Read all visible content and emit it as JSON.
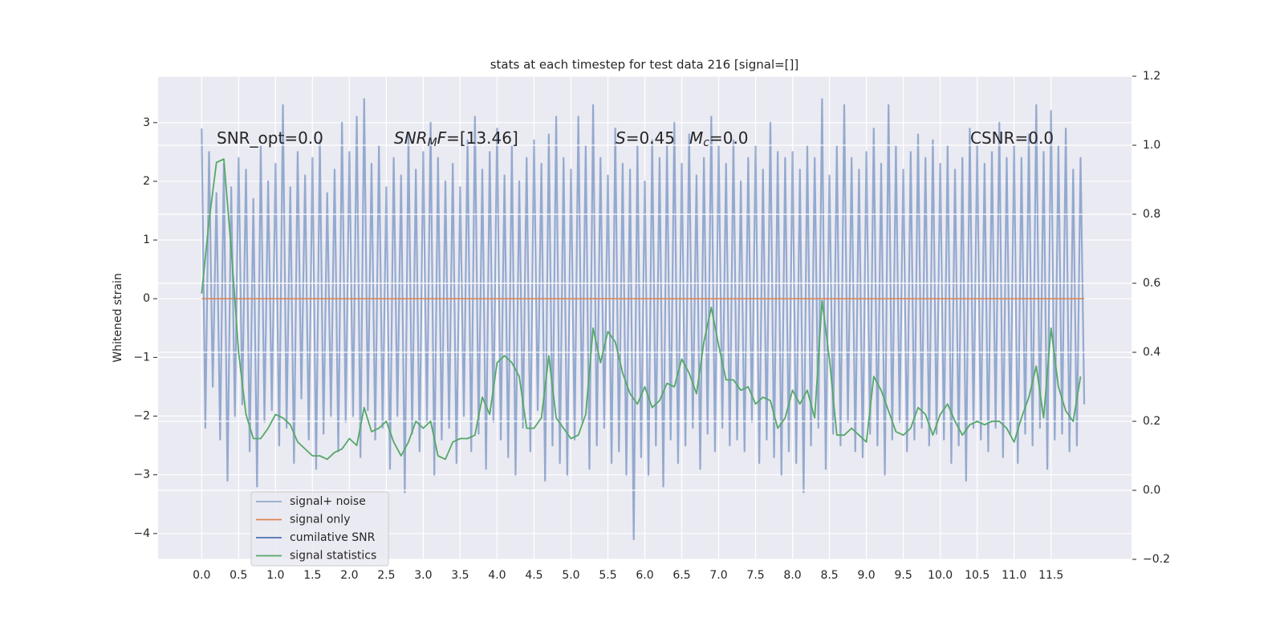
{
  "chart_data": {
    "type": "line",
    "title": "stats at each timestep for test data 216 [signal=[]]",
    "y_label": "Whitened strain",
    "xlim": [
      -0.59,
      12.59
    ],
    "ylim": [
      -4.44,
      3.79
    ],
    "y2lim": [
      -0.2,
      1.2
    ],
    "xticks": [
      {
        "value": 0,
        "label": "0.0"
      },
      0.5,
      {
        "value": 1,
        "label": "1.0"
      },
      1.5,
      {
        "value": 2,
        "label": "2.0"
      },
      2.5,
      {
        "value": 3,
        "label": "3.0"
      },
      3.5,
      {
        "value": 4,
        "label": "4.0"
      },
      4.5,
      {
        "value": 5,
        "label": "5.0"
      },
      5.5,
      {
        "value": 6,
        "label": "6.0"
      },
      6.5,
      {
        "value": 7,
        "label": "7.0"
      },
      7.5,
      {
        "value": 8,
        "label": "8.0"
      },
      8.5,
      {
        "value": 9,
        "label": "9.0"
      },
      9.5,
      {
        "value": 10,
        "label": "10.0"
      },
      10.5,
      {
        "value": 11,
        "label": "11.0"
      },
      11.5
    ],
    "yticks": [
      3,
      2,
      1,
      0,
      {
        "value": -1,
        "label": "−1"
      },
      {
        "value": -2,
        "label": "−2"
      },
      {
        "value": -3,
        "label": "−3"
      },
      {
        "value": -4,
        "label": "−4"
      }
    ],
    "y2ticks": [
      1.2,
      {
        "value": 1,
        "label": "1.0"
      },
      0.8,
      0.6,
      0.4,
      0.2,
      {
        "value": 0,
        "label": "0.0"
      },
      {
        "value": -0.2,
        "label": "−0.2"
      }
    ],
    "grid": true,
    "legend": "lower left",
    "annotations": [
      {
        "parts": [
          {
            "text": "SNR_opt=0.0"
          }
        ]
      },
      {
        "parts": [
          {
            "text": "SNR",
            "italic": true
          },
          {
            "text": "M",
            "italic": true,
            "sub": true
          },
          {
            "text": "F",
            "italic": true
          },
          {
            "text": "=[13.46]"
          }
        ]
      },
      {
        "parts": [
          {
            "text": "S",
            "italic": true
          },
          {
            "text": "=0.45"
          }
        ]
      },
      {
        "parts": [
          {
            "text": "M",
            "italic": true
          },
          {
            "text": "c",
            "italic": true,
            "sub": true
          },
          {
            "text": "=0.0"
          }
        ]
      },
      {
        "parts": [
          {
            "text": "CSNR=0.0"
          }
        ]
      }
    ],
    "series": [
      {
        "name": "signal+ noise",
        "color": "#4c72b0",
        "opacity": 0.55,
        "x": [
          0,
          0.05,
          0.1,
          0.15,
          0.2,
          0.25,
          0.3,
          0.35,
          0.4,
          0.45,
          0.5,
          0.55,
          0.6,
          0.65,
          0.7,
          0.75,
          0.8,
          0.85,
          0.9,
          0.95,
          1,
          1.05,
          1.1,
          1.15,
          1.2,
          1.25,
          1.3,
          1.35,
          1.4,
          1.45,
          1.5,
          1.55,
          1.6,
          1.65,
          1.7,
          1.75,
          1.8,
          1.85,
          1.9,
          1.95,
          2,
          2.05,
          2.1,
          2.15,
          2.2,
          2.25,
          2.3,
          2.35,
          2.4,
          2.45,
          2.5,
          2.55,
          2.6,
          2.65,
          2.7,
          2.75,
          2.8,
          2.85,
          2.9,
          2.95,
          3,
          3.05,
          3.1,
          3.15,
          3.2,
          3.25,
          3.3,
          3.35,
          3.4,
          3.45,
          3.5,
          3.55,
          3.6,
          3.65,
          3.7,
          3.75,
          3.8,
          3.85,
          3.9,
          3.95,
          4,
          4.05,
          4.1,
          4.15,
          4.2,
          4.25,
          4.3,
          4.35,
          4.4,
          4.45,
          4.5,
          4.55,
          4.6,
          4.65,
          4.7,
          4.75,
          4.8,
          4.85,
          4.9,
          4.95,
          5,
          5.05,
          5.1,
          5.15,
          5.2,
          5.25,
          5.3,
          5.35,
          5.4,
          5.45,
          5.5,
          5.55,
          5.6,
          5.65,
          5.7,
          5.75,
          5.8,
          5.85,
          5.9,
          5.95,
          6,
          6.05,
          6.1,
          6.15,
          6.2,
          6.25,
          6.3,
          6.35,
          6.4,
          6.45,
          6.5,
          6.55,
          6.6,
          6.65,
          6.7,
          6.75,
          6.8,
          6.85,
          6.9,
          6.95,
          7,
          7.05,
          7.1,
          7.15,
          7.2,
          7.25,
          7.3,
          7.35,
          7.4,
          7.45,
          7.5,
          7.55,
          7.6,
          7.65,
          7.7,
          7.75,
          7.8,
          7.85,
          7.9,
          7.95,
          8,
          8.05,
          8.1,
          8.15,
          8.2,
          8.25,
          8.3,
          8.35,
          8.4,
          8.45,
          8.5,
          8.55,
          8.6,
          8.65,
          8.7,
          8.75,
          8.8,
          8.85,
          8.9,
          8.95,
          9,
          9.05,
          9.1,
          9.15,
          9.2,
          9.25,
          9.3,
          9.35,
          9.4,
          9.45,
          9.5,
          9.55,
          9.6,
          9.65,
          9.7,
          9.75,
          9.8,
          9.85,
          9.9,
          9.95,
          10,
          10.05,
          10.1,
          10.15,
          10.2,
          10.25,
          10.3,
          10.35,
          10.4,
          10.45,
          10.5,
          10.55,
          10.6,
          10.65,
          10.7,
          10.75,
          10.8,
          10.85,
          10.9,
          10.95,
          11,
          11.05,
          11.1,
          11.15,
          11.2,
          11.25,
          11.3,
          11.35,
          11.4,
          11.45,
          11.5,
          11.55,
          11.6,
          11.65,
          11.7,
          11.75,
          11.8,
          11.85,
          11.9,
          11.95
        ],
        "values": [
          2.9,
          -2.2,
          2.5,
          -1.5,
          1.8,
          -2.4,
          2.3,
          -3.1,
          1.9,
          -2.0,
          2.4,
          -1.8,
          2.2,
          -2.6,
          1.7,
          -3.2,
          2.6,
          -2.1,
          2.0,
          -1.9,
          2.3,
          -2.5,
          3.3,
          -2.2,
          1.9,
          -2.8,
          2.5,
          -1.7,
          2.1,
          -2.4,
          2.4,
          -2.9,
          2.7,
          -2.3,
          1.8,
          -2.0,
          2.2,
          -2.6,
          3.0,
          -2.1,
          2.5,
          -2.0,
          3.1,
          -2.7,
          3.4,
          -1.9,
          2.3,
          -2.4,
          2.6,
          -2.2,
          1.9,
          -2.9,
          2.4,
          -2.0,
          2.1,
          -3.3,
          2.8,
          -2.3,
          2.2,
          -2.6,
          2.5,
          -2.1,
          3.0,
          -3.0,
          2.4,
          -2.4,
          2.0,
          -2.2,
          2.3,
          -2.8,
          1.9,
          -2.0,
          2.7,
          -2.6,
          3.1,
          -2.3,
          2.2,
          -2.9,
          2.5,
          -2.1,
          2.9,
          -2.4,
          2.1,
          -2.7,
          2.6,
          -3.0,
          2.0,
          -2.2,
          2.4,
          -2.6,
          2.7,
          -1.9,
          2.3,
          -3.1,
          2.8,
          -2.5,
          3.1,
          -2.8,
          2.4,
          -3.0,
          2.2,
          -2.4,
          3.1,
          -2.1,
          2.6,
          -2.9,
          3.3,
          -2.5,
          2.4,
          -2.2,
          2.1,
          -2.8,
          2.9,
          -2.6,
          2.3,
          -3.0,
          2.2,
          -4.1,
          2.6,
          -2.7,
          2.0,
          -3.0,
          2.7,
          -2.5,
          2.4,
          -3.2,
          2.6,
          -2.4,
          3.0,
          -2.8,
          2.3,
          -2.5,
          2.8,
          -2.2,
          2.1,
          -2.9,
          2.4,
          -2.3,
          3.1,
          -2.6,
          2.6,
          -2.2,
          2.3,
          -2.5,
          2.7,
          -2.4,
          2.0,
          -2.6,
          2.4,
          -2.1,
          2.6,
          -2.8,
          2.2,
          -2.4,
          3.0,
          -2.7,
          2.5,
          -3.0,
          2.4,
          -2.6,
          2.5,
          -2.8,
          2.2,
          -3.3,
          2.6,
          -2.5,
          2.4,
          -2.2,
          3.4,
          -2.9,
          2.1,
          -2.3,
          2.6,
          -2.5,
          3.3,
          -2.1,
          2.4,
          -2.6,
          2.2,
          -2.7,
          2.5,
          -2.3,
          2.9,
          -2.5,
          2.3,
          -3.0,
          3.3,
          -2.4,
          2.6,
          -2.1,
          2.2,
          -2.6,
          2.5,
          -2.4,
          2.8,
          -2.2,
          2.4,
          -2.5,
          2.7,
          -2.3,
          2.3,
          -2.4,
          2.6,
          -2.8,
          2.2,
          -2.5,
          2.4,
          -3.1,
          2.9,
          -2.2,
          2.6,
          -2.4,
          2.3,
          -2.6,
          2.5,
          -2.2,
          3.0,
          -2.7,
          2.4,
          -2.3,
          2.6,
          -2.8,
          2.4,
          -2.3,
          2.8,
          -2.5,
          3.3,
          -2.2,
          2.5,
          -2.9,
          3.2,
          -2.4,
          2.6,
          -2.3,
          2.9,
          -2.6,
          2.2,
          -2.5,
          2.4,
          -1.8
        ]
      },
      {
        "name": "signal only",
        "color": "#dd8452",
        "x": [
          0,
          11.95
        ],
        "values": [
          0,
          0
        ]
      },
      {
        "name": "cumilative SNR",
        "color": "#4c72b0"
      },
      {
        "name": "signal statistics",
        "color": "#55a868",
        "axis": "y2",
        "x": [
          0,
          0.1,
          0.2,
          0.3,
          0.4,
          0.5,
          0.6,
          0.7,
          0.8,
          0.9,
          1,
          1.1,
          1.2,
          1.3,
          1.4,
          1.5,
          1.6,
          1.7,
          1.8,
          1.9,
          2,
          2.1,
          2.2,
          2.3,
          2.4,
          2.5,
          2.6,
          2.7,
          2.8,
          2.9,
          3,
          3.1,
          3.2,
          3.3,
          3.4,
          3.5,
          3.6,
          3.7,
          3.8,
          3.9,
          4,
          4.1,
          4.2,
          4.3,
          4.4,
          4.5,
          4.6,
          4.7,
          4.8,
          4.9,
          5,
          5.1,
          5.2,
          5.3,
          5.4,
          5.5,
          5.6,
          5.7,
          5.8,
          5.9,
          6,
          6.1,
          6.2,
          6.3,
          6.4,
          6.5,
          6.6,
          6.7,
          6.8,
          6.9,
          7,
          7.1,
          7.2,
          7.3,
          7.4,
          7.5,
          7.6,
          7.7,
          7.8,
          7.9,
          8,
          8.1,
          8.2,
          8.3,
          8.4,
          8.5,
          8.6,
          8.7,
          8.8,
          8.9,
          9,
          9.1,
          9.2,
          9.3,
          9.4,
          9.5,
          9.6,
          9.7,
          9.8,
          9.9,
          10,
          10.1,
          10.2,
          10.3,
          10.4,
          10.5,
          10.6,
          10.7,
          10.8,
          10.9,
          11,
          11.1,
          11.2,
          11.3,
          11.4,
          11.5,
          11.6,
          11.7,
          11.8,
          11.9
        ],
        "values": [
          0.57,
          0.78,
          0.95,
          0.96,
          0.7,
          0.4,
          0.22,
          0.15,
          0.15,
          0.18,
          0.22,
          0.21,
          0.19,
          0.14,
          0.12,
          0.1,
          0.1,
          0.09,
          0.11,
          0.12,
          0.15,
          0.13,
          0.24,
          0.17,
          0.18,
          0.2,
          0.14,
          0.1,
          0.14,
          0.2,
          0.18,
          0.2,
          0.1,
          0.09,
          0.14,
          0.15,
          0.15,
          0.16,
          0.27,
          0.22,
          0.37,
          0.39,
          0.37,
          0.33,
          0.18,
          0.18,
          0.21,
          0.39,
          0.21,
          0.18,
          0.15,
          0.16,
          0.22,
          0.47,
          0.37,
          0.46,
          0.43,
          0.34,
          0.28,
          0.25,
          0.3,
          0.24,
          0.26,
          0.31,
          0.3,
          0.38,
          0.34,
          0.28,
          0.43,
          0.53,
          0.42,
          0.32,
          0.32,
          0.29,
          0.3,
          0.25,
          0.27,
          0.26,
          0.18,
          0.21,
          0.29,
          0.25,
          0.29,
          0.21,
          0.55,
          0.38,
          0.16,
          0.16,
          0.18,
          0.16,
          0.14,
          0.33,
          0.29,
          0.23,
          0.17,
          0.16,
          0.18,
          0.24,
          0.22,
          0.16,
          0.22,
          0.25,
          0.2,
          0.16,
          0.19,
          0.2,
          0.19,
          0.2,
          0.2,
          0.18,
          0.14,
          0.21,
          0.27,
          0.36,
          0.21,
          0.47,
          0.3,
          0.23,
          0.2,
          0.33
        ]
      }
    ]
  }
}
